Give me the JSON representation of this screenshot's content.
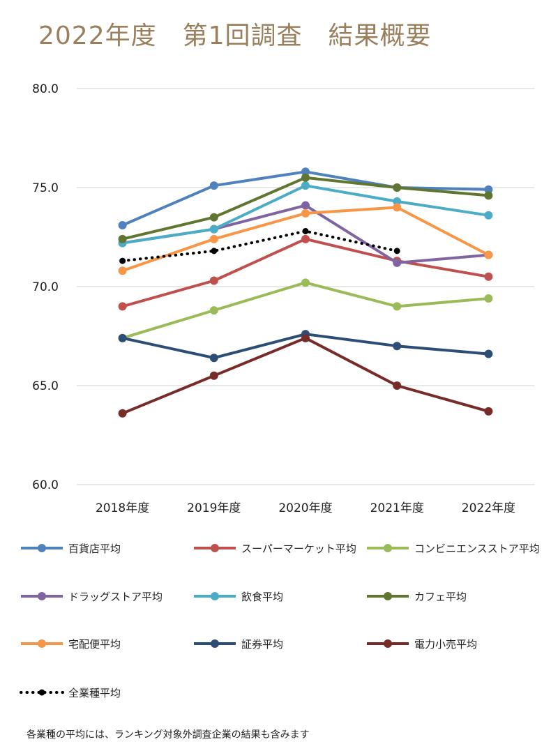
{
  "chart_data": {
    "type": "line",
    "title": "2022年度　第1回調査　結果概要",
    "categories": [
      "2018年度",
      "2019年度",
      "2020年度",
      "2021年度",
      "2022年度"
    ],
    "ylim": [
      60.0,
      80.0
    ],
    "yticks": [
      "80.0",
      "75.0",
      "70.0",
      "65.0",
      "60.0"
    ],
    "ytick_values": [
      80,
      75,
      70,
      65,
      60
    ],
    "grid": true,
    "legend_position": "bottom",
    "series": [
      {
        "name": "百貨店平均",
        "color": "#4f81bd",
        "style": "solid",
        "values": [
          73.1,
          75.1,
          75.8,
          75.0,
          74.9
        ]
      },
      {
        "name": "スーパーマーケット平均",
        "color": "#c0504d",
        "style": "solid",
        "values": [
          69.0,
          70.3,
          72.4,
          71.3,
          70.5
        ]
      },
      {
        "name": "コンビニエンスストア平均",
        "color": "#9bbb59",
        "style": "solid",
        "values": [
          67.4,
          68.8,
          70.2,
          69.0,
          69.4
        ]
      },
      {
        "name": "ドラッグストア平均",
        "color": "#8064a2",
        "style": "solid",
        "values": [
          72.2,
          72.9,
          74.1,
          71.2,
          71.6
        ]
      },
      {
        "name": "飲食平均",
        "color": "#4bacc6",
        "style": "solid",
        "values": [
          72.2,
          72.9,
          75.1,
          74.3,
          73.6
        ]
      },
      {
        "name": "カフェ平均",
        "color": "#5f7530",
        "style": "solid",
        "values": [
          72.4,
          73.5,
          75.5,
          75.0,
          74.6
        ]
      },
      {
        "name": "宅配便平均",
        "color": "#f79646",
        "style": "solid",
        "values": [
          70.8,
          72.4,
          73.7,
          74.0,
          71.6
        ]
      },
      {
        "name": "証券平均",
        "color": "#2c4d75",
        "style": "solid",
        "values": [
          67.4,
          66.4,
          67.6,
          67.0,
          66.6
        ]
      },
      {
        "name": "電力小売平均",
        "color": "#772c2a",
        "style": "solid",
        "values": [
          63.6,
          65.5,
          67.4,
          65.0,
          63.7
        ]
      },
      {
        "name": "全業種平均",
        "color": "#000000",
        "style": "dotted",
        "values": [
          71.3,
          71.8,
          72.8,
          71.8,
          null
        ]
      }
    ],
    "footnote": "各業種の平均には、ランキング対象外調査企業の結果も含みます"
  }
}
